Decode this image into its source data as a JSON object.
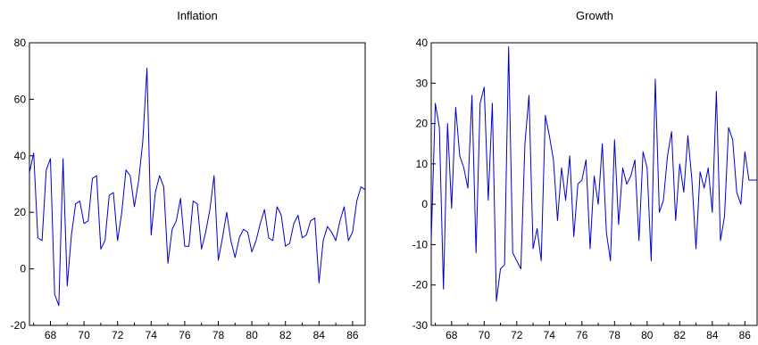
{
  "chart_data": [
    {
      "type": "line",
      "title": "Inflation",
      "xlabel": "",
      "ylabel": "",
      "ylim": [
        -20,
        80
      ],
      "yticks": [
        -20,
        0,
        20,
        40,
        60,
        80
      ],
      "xlim": [
        1966.75,
        1986.75
      ],
      "xticks": [
        1968,
        1970,
        1972,
        1974,
        1976,
        1978,
        1980,
        1982,
        1984,
        1986
      ],
      "xtick_labels": [
        "68",
        "70",
        "72",
        "74",
        "76",
        "78",
        "80",
        "82",
        "84",
        "86"
      ],
      "grid": false,
      "color": "#0000cc",
      "series": [
        {
          "x": [
            1966.75,
            1967.0,
            1967.25,
            1967.5,
            1967.75,
            1968.0,
            1968.25,
            1968.5,
            1968.75,
            1969.0,
            1969.25,
            1969.5,
            1969.75,
            1970.0,
            1970.25,
            1970.5,
            1970.75,
            1971.0,
            1971.25,
            1971.5,
            1971.75,
            1972.0,
            1972.25,
            1972.5,
            1972.75,
            1973.0,
            1973.25,
            1973.5,
            1973.75,
            1974.0,
            1974.25,
            1974.5,
            1974.75,
            1975.0,
            1975.25,
            1975.5,
            1975.75,
            1976.0,
            1976.25,
            1976.5,
            1976.75,
            1977.0,
            1977.25,
            1977.5,
            1977.75,
            1978.0,
            1978.25,
            1978.5,
            1978.75,
            1979.0,
            1979.25,
            1979.5,
            1979.75,
            1980.0,
            1980.25,
            1980.5,
            1980.75,
            1981.0,
            1981.25,
            1981.5,
            1981.75,
            1982.0,
            1982.25,
            1982.5,
            1982.75,
            1983.0,
            1983.25,
            1983.5,
            1983.75,
            1984.0,
            1984.25,
            1984.5,
            1984.75,
            1985.0,
            1985.25,
            1985.5,
            1985.75,
            1986.0,
            1986.25,
            1986.5,
            1986.75
          ],
          "values": [
            34,
            41,
            11,
            10,
            35,
            39,
            -9,
            -13,
            39,
            -6,
            12,
            23,
            24,
            16,
            17,
            32,
            33,
            7,
            10,
            26,
            27,
            10,
            20,
            35,
            33,
            22,
            31,
            45,
            71,
            12,
            27,
            33,
            29,
            2,
            14,
            17,
            25,
            8,
            8,
            24,
            23,
            7,
            13,
            21,
            33,
            3,
            11,
            20,
            10,
            4,
            11,
            14,
            13,
            6,
            10,
            16,
            21,
            11,
            10,
            22,
            19,
            8,
            9,
            16,
            19,
            11,
            12,
            17,
            18,
            -5,
            10,
            15,
            13,
            10,
            17,
            22,
            10,
            13,
            24,
            29,
            28
          ]
        }
      ]
    },
    {
      "type": "line",
      "title": "Growth",
      "xlabel": "",
      "ylabel": "",
      "ylim": [
        -30,
        40
      ],
      "yticks": [
        -30,
        -20,
        -10,
        0,
        10,
        20,
        30,
        40
      ],
      "xlim": [
        1966.75,
        1986.75
      ],
      "xticks": [
        1968,
        1970,
        1972,
        1974,
        1976,
        1978,
        1980,
        1982,
        1984,
        1986
      ],
      "xtick_labels": [
        "68",
        "70",
        "72",
        "74",
        "76",
        "78",
        "80",
        "82",
        "84",
        "86"
      ],
      "grid": false,
      "color": "#0000cc",
      "series": [
        {
          "x": [
            1966.75,
            1967.0,
            1967.25,
            1967.5,
            1967.75,
            1968.0,
            1968.25,
            1968.5,
            1968.75,
            1969.0,
            1969.25,
            1969.5,
            1969.75,
            1970.0,
            1970.25,
            1970.5,
            1970.75,
            1971.0,
            1971.25,
            1971.5,
            1971.75,
            1972.0,
            1972.25,
            1972.5,
            1972.75,
            1973.0,
            1973.25,
            1973.5,
            1973.75,
            1974.0,
            1974.25,
            1974.5,
            1974.75,
            1975.0,
            1975.25,
            1975.5,
            1975.75,
            1976.0,
            1976.25,
            1976.5,
            1976.75,
            1977.0,
            1977.25,
            1977.5,
            1977.75,
            1978.0,
            1978.25,
            1978.5,
            1978.75,
            1979.0,
            1979.25,
            1979.5,
            1979.75,
            1980.0,
            1980.25,
            1980.5,
            1980.75,
            1981.0,
            1981.25,
            1981.5,
            1981.75,
            1982.0,
            1982.25,
            1982.5,
            1982.75,
            1983.0,
            1983.25,
            1983.5,
            1983.75,
            1984.0,
            1984.25,
            1984.5,
            1984.75,
            1985.0,
            1985.25,
            1985.5,
            1985.75,
            1986.0,
            1986.25,
            1986.5,
            1986.75
          ],
          "values": [
            -9,
            25,
            19,
            -21,
            20,
            -1,
            24,
            12,
            9,
            4,
            27,
            -12,
            25,
            29,
            1,
            25,
            -24,
            -16,
            -15,
            39,
            -12,
            -14,
            -16,
            15,
            27,
            -11,
            -6,
            -14,
            22,
            17,
            11,
            -4,
            9,
            1,
            12,
            -8,
            5,
            6,
            11,
            -11,
            7,
            0,
            15,
            -7,
            -14,
            16,
            -5,
            9,
            5,
            7,
            11,
            -9,
            13,
            9,
            -14,
            31,
            -2,
            1,
            12,
            18,
            -4,
            10,
            3,
            17,
            6,
            -11,
            8,
            4,
            9,
            -2,
            28,
            -9,
            -3,
            19,
            16,
            3,
            0,
            13,
            6,
            6,
            6
          ]
        }
      ]
    }
  ]
}
